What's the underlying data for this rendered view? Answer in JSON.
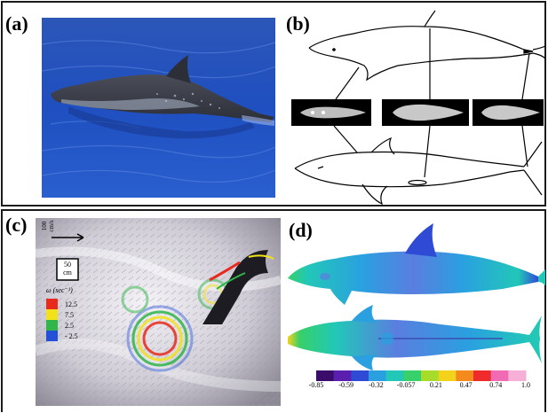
{
  "panels": {
    "a": {
      "label": "(a)"
    },
    "b": {
      "label": "(b)"
    },
    "c": {
      "label": "(c)",
      "arrow_scale": {
        "line1": "100",
        "line2": "cm/s"
      },
      "length_scale": {
        "line1": "50",
        "line2": "cm"
      },
      "legend_title": "ω (sec⁻¹)",
      "legend": [
        {
          "value": "12.5",
          "color": "#e8291c"
        },
        {
          "value": "7.5",
          "color": "#f2e21a"
        },
        {
          "value": "2.5",
          "color": "#2fb54a"
        },
        {
          "value": "- 2.5",
          "color": "#2450d8"
        }
      ]
    },
    "d": {
      "label": "(d)",
      "colorbar_ticks": [
        "-0.85",
        "-0.59",
        "-0.32",
        "-0.057",
        "0.21",
        "0.47",
        "0.74",
        "1.0"
      ],
      "colorbar_colors": [
        "#3a0d6b",
        "#5b1fb0",
        "#2f4bd6",
        "#2aa0e0",
        "#22c7b8",
        "#37d06a",
        "#a8dc2a",
        "#f3d21c",
        "#f58a1c",
        "#ee2a2a",
        "#f06ab4",
        "#f6b0d8"
      ]
    }
  }
}
